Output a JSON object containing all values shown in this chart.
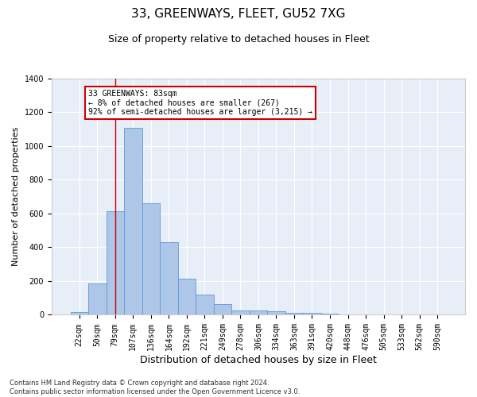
{
  "title": "33, GREENWAYS, FLEET, GU52 7XG",
  "subtitle": "Size of property relative to detached houses in Fleet",
  "xlabel": "Distribution of detached houses by size in Fleet",
  "ylabel": "Number of detached properties",
  "categories": [
    "22sqm",
    "50sqm",
    "79sqm",
    "107sqm",
    "136sqm",
    "164sqm",
    "192sqm",
    "221sqm",
    "249sqm",
    "278sqm",
    "306sqm",
    "334sqm",
    "363sqm",
    "391sqm",
    "420sqm",
    "448sqm",
    "476sqm",
    "505sqm",
    "533sqm",
    "562sqm",
    "590sqm"
  ],
  "values": [
    15,
    185,
    615,
    1110,
    660,
    430,
    215,
    120,
    65,
    25,
    25,
    20,
    12,
    10,
    5,
    3,
    2,
    2,
    1,
    1,
    1
  ],
  "bar_color": "#aec6e8",
  "bar_edge_color": "#5b9bd5",
  "background_color": "#e8eef8",
  "grid_color": "#ffffff",
  "fig_background_color": "#ffffff",
  "ylim": [
    0,
    1400
  ],
  "yticks": [
    0,
    200,
    400,
    600,
    800,
    1000,
    1200,
    1400
  ],
  "annotation_text": "33 GREENWAYS: 83sqm\n← 8% of detached houses are smaller (267)\n92% of semi-detached houses are larger (3,215) →",
  "annotation_box_color": "#ffffff",
  "annotation_box_edge_color": "#cc0000",
  "red_line_x": 2.0,
  "footer_text": "Contains HM Land Registry data © Crown copyright and database right 2024.\nContains public sector information licensed under the Open Government Licence v3.0.",
  "title_fontsize": 11,
  "subtitle_fontsize": 9,
  "xlabel_fontsize": 9,
  "ylabel_fontsize": 8,
  "tick_fontsize": 7,
  "footer_fontsize": 6
}
